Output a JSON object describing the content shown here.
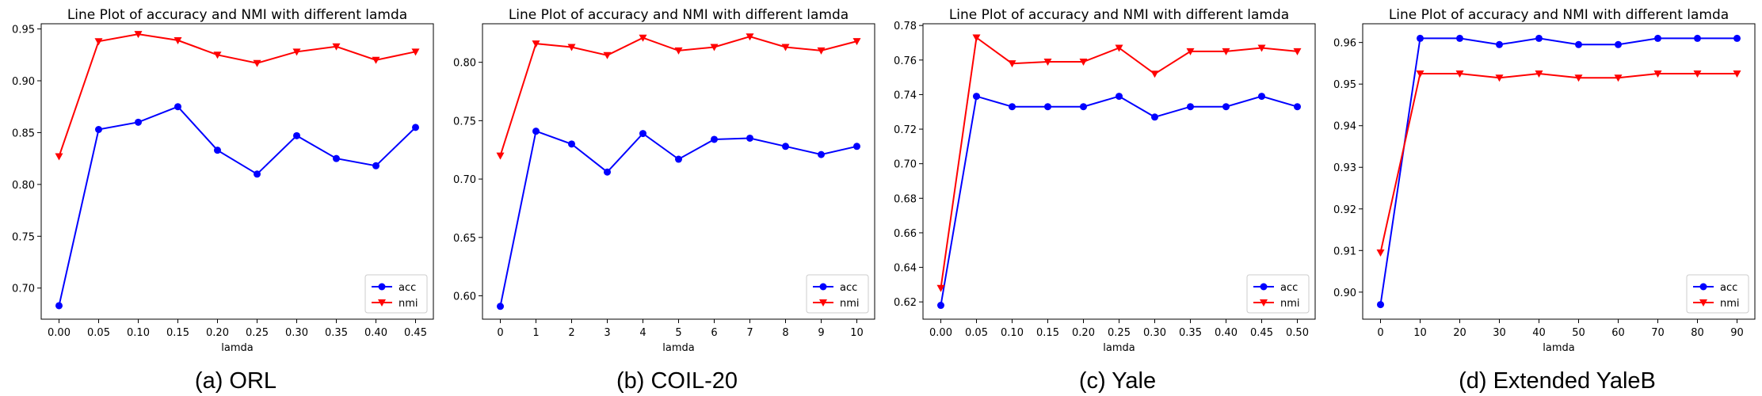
{
  "chart_data": [
    {
      "type": "line",
      "title": "Line Plot of accuracy and NMI with different lamda",
      "xlabel": "lamda",
      "ylabel": "",
      "caption": "(a) ORL",
      "x": [
        0.0,
        0.05,
        0.1,
        0.15,
        0.2,
        0.25,
        0.3,
        0.35,
        0.4,
        0.45
      ],
      "xticks": [
        "0.00",
        "0.05",
        "0.10",
        "0.15",
        "0.20",
        "0.25",
        "0.30",
        "0.35",
        "0.40",
        "0.45"
      ],
      "xlim": [
        -0.0225,
        0.4725
      ],
      "yticks": [
        "0.70",
        "0.75",
        "0.80",
        "0.85",
        "0.90",
        "0.95"
      ],
      "ytick_values": [
        0.7,
        0.75,
        0.8,
        0.85,
        0.9,
        0.95
      ],
      "ylim": [
        0.67,
        0.955
      ],
      "legend_position": "lower-right",
      "grid": false,
      "series": [
        {
          "name": "acc",
          "color": "#0000ff",
          "marker": "circle",
          "values": [
            0.683,
            0.853,
            0.86,
            0.875,
            0.833,
            0.81,
            0.847,
            0.825,
            0.818,
            0.855
          ]
        },
        {
          "name": "nmi",
          "color": "#ff0000",
          "marker": "triangle-down",
          "values": [
            0.827,
            0.938,
            0.945,
            0.939,
            0.925,
            0.917,
            0.928,
            0.933,
            0.92,
            0.928
          ]
        }
      ]
    },
    {
      "type": "line",
      "title": "Line Plot of accuracy and NMI with different lamda",
      "xlabel": "lamda",
      "ylabel": "",
      "caption": "(b) COIL-20",
      "x": [
        0,
        1,
        2,
        3,
        4,
        5,
        6,
        7,
        8,
        9,
        10
      ],
      "xticks": [
        "0",
        "1",
        "2",
        "3",
        "4",
        "5",
        "6",
        "7",
        "8",
        "9",
        "10"
      ],
      "xlim": [
        -0.5,
        10.5
      ],
      "yticks": [
        "0.60",
        "0.65",
        "0.70",
        "0.75",
        "0.80"
      ],
      "ytick_values": [
        0.6,
        0.65,
        0.7,
        0.75,
        0.8
      ],
      "ylim": [
        0.58,
        0.833
      ],
      "legend_position": "lower-right",
      "grid": false,
      "series": [
        {
          "name": "acc",
          "color": "#0000ff",
          "marker": "circle",
          "values": [
            0.591,
            0.741,
            0.73,
            0.706,
            0.739,
            0.717,
            0.734,
            0.735,
            0.728,
            0.721,
            0.728
          ]
        },
        {
          "name": "nmi",
          "color": "#ff0000",
          "marker": "triangle-down",
          "values": [
            0.72,
            0.816,
            0.813,
            0.806,
            0.821,
            0.81,
            0.813,
            0.822,
            0.813,
            0.81,
            0.818
          ]
        }
      ]
    },
    {
      "type": "line",
      "title": "Line Plot of accuracy and NMI with different lamda",
      "xlabel": "lamda",
      "ylabel": "",
      "caption": "(c) Yale",
      "x": [
        0.0,
        0.05,
        0.1,
        0.15,
        0.2,
        0.25,
        0.3,
        0.35,
        0.4,
        0.45,
        0.5
      ],
      "xticks": [
        "0.00",
        "0.05",
        "0.10",
        "0.15",
        "0.20",
        "0.25",
        "0.30",
        "0.35",
        "0.40",
        "0.45",
        "0.50"
      ],
      "xlim": [
        -0.025,
        0.525
      ],
      "yticks": [
        "0.62",
        "0.64",
        "0.66",
        "0.68",
        "0.70",
        "0.72",
        "0.74",
        "0.76",
        "0.78"
      ],
      "ytick_values": [
        0.62,
        0.64,
        0.66,
        0.68,
        0.7,
        0.72,
        0.74,
        0.76,
        0.78
      ],
      "ylim": [
        0.61,
        0.781
      ],
      "legend_position": "lower-right",
      "grid": false,
      "series": [
        {
          "name": "acc",
          "color": "#0000ff",
          "marker": "circle",
          "values": [
            0.618,
            0.739,
            0.733,
            0.733,
            0.733,
            0.739,
            0.727,
            0.733,
            0.733,
            0.739,
            0.733
          ]
        },
        {
          "name": "nmi",
          "color": "#ff0000",
          "marker": "triangle-down",
          "values": [
            0.628,
            0.773,
            0.758,
            0.759,
            0.759,
            0.767,
            0.752,
            0.765,
            0.765,
            0.767,
            0.765
          ]
        }
      ]
    },
    {
      "type": "line",
      "title": "Line Plot of accuracy and NMI with different lamda",
      "xlabel": "lamda",
      "ylabel": "",
      "caption": "(d) Extended YaleB",
      "x": [
        0,
        10,
        20,
        30,
        40,
        50,
        60,
        70,
        80,
        90
      ],
      "xticks": [
        "0",
        "10",
        "20",
        "30",
        "40",
        "50",
        "60",
        "70",
        "80",
        "90"
      ],
      "xlim": [
        -4.5,
        94.5
      ],
      "yticks": [
        "0.90",
        "0.91",
        "0.92",
        "0.93",
        "0.94",
        "0.95",
        "0.96"
      ],
      "ytick_values": [
        0.9,
        0.91,
        0.92,
        0.93,
        0.94,
        0.95,
        0.96
      ],
      "ylim": [
        0.8935,
        0.9645
      ],
      "legend_position": "lower-right",
      "grid": false,
      "series": [
        {
          "name": "acc",
          "color": "#0000ff",
          "marker": "circle",
          "values": [
            0.897,
            0.961,
            0.961,
            0.9595,
            0.961,
            0.9595,
            0.9595,
            0.961,
            0.961,
            0.961
          ]
        },
        {
          "name": "nmi",
          "color": "#ff0000",
          "marker": "triangle-down",
          "values": [
            0.9095,
            0.9525,
            0.9525,
            0.9515,
            0.9525,
            0.9515,
            0.9515,
            0.9525,
            0.9525,
            0.9525
          ]
        }
      ]
    }
  ]
}
